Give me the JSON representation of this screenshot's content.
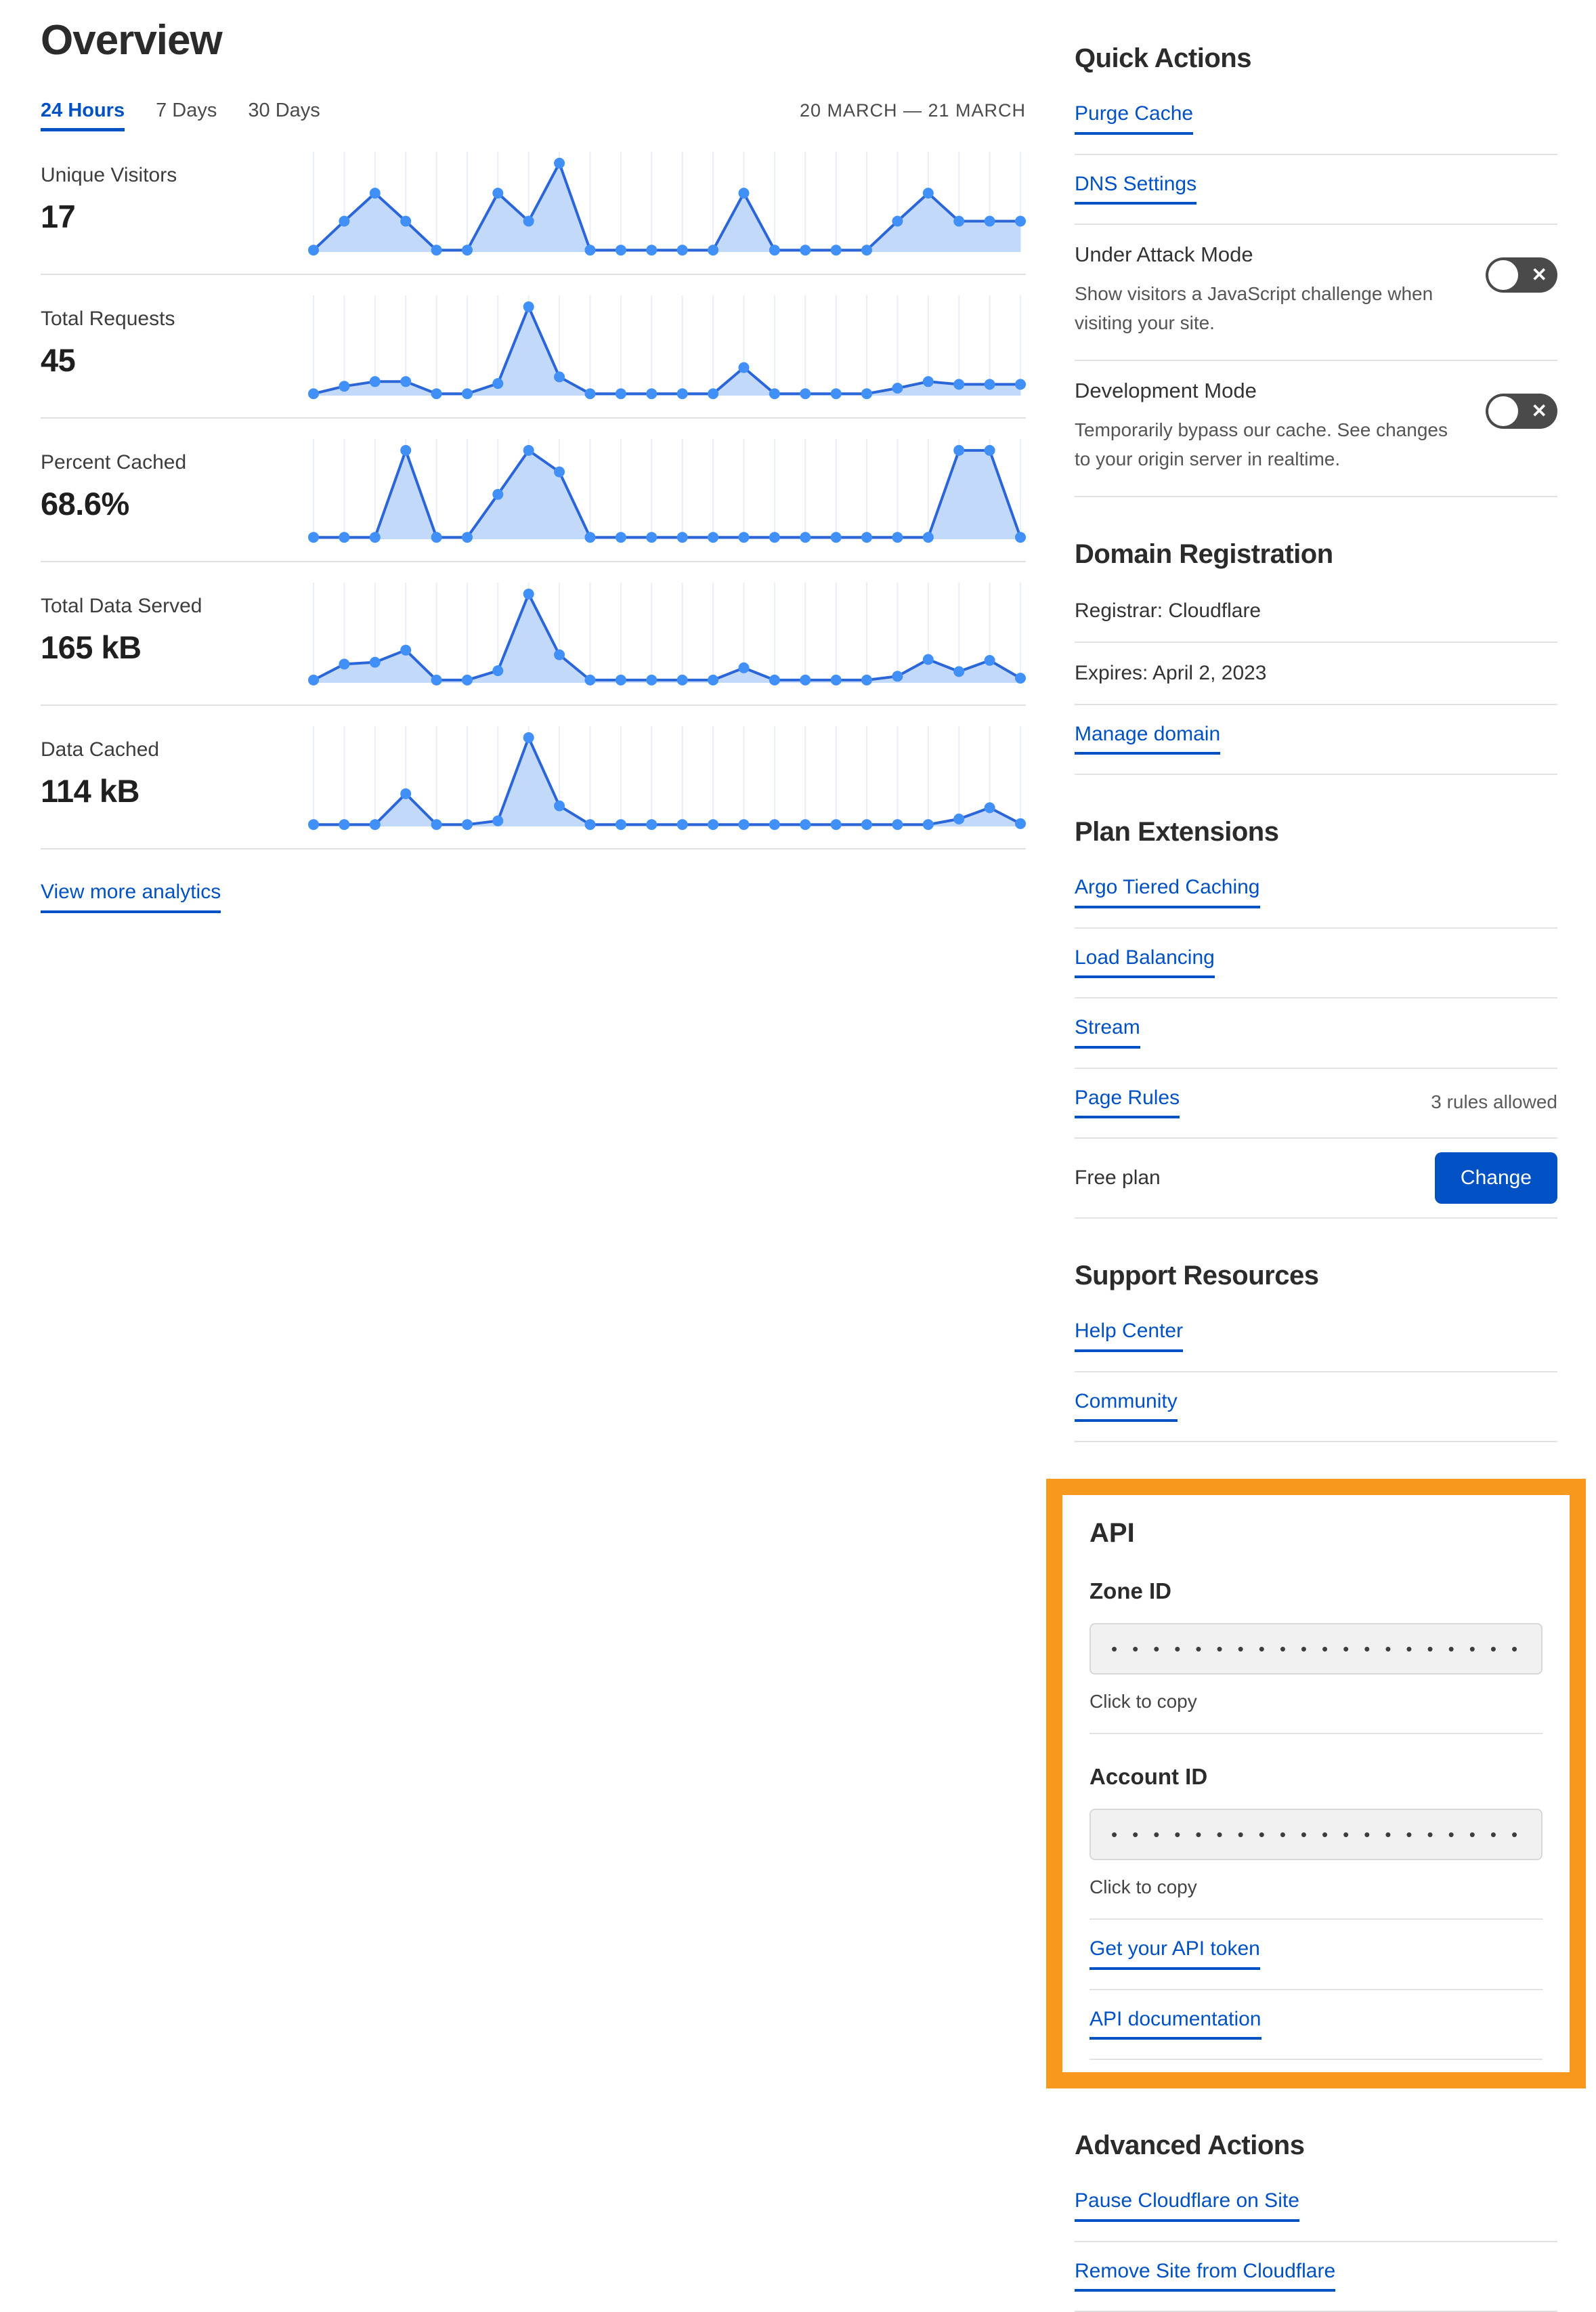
{
  "header": {
    "title": "Overview",
    "date_range": "20 MARCH — 21 MARCH"
  },
  "tabs": [
    {
      "label": "24 Hours",
      "active": true
    },
    {
      "label": "7 Days",
      "active": false
    },
    {
      "label": "30 Days",
      "active": false
    }
  ],
  "view_more_label": "View more analytics",
  "chart_data": {
    "type": "line",
    "subtype": "area-sparkline",
    "x_range": "24 hourly samples, 20 MARCH — 21 MARCH",
    "legend": "none",
    "grid": "vertical gridline at each sample point",
    "ylim": [
      0,
      100
    ],
    "note": "values are relative heights (0-100) estimated from sparkline pixels",
    "series": [
      {
        "name": "Unique Visitors",
        "display_value": "17",
        "values": [
          2,
          33,
          63,
          33,
          2,
          2,
          63,
          33,
          95,
          2,
          2,
          2,
          2,
          2,
          63,
          2,
          2,
          2,
          2,
          33,
          63,
          33,
          33,
          33
        ]
      },
      {
        "name": "Total Requests",
        "display_value": "45",
        "values": [
          2,
          10,
          15,
          15,
          2,
          2,
          13,
          95,
          20,
          2,
          2,
          2,
          2,
          2,
          30,
          2,
          2,
          2,
          2,
          8,
          15,
          12,
          12,
          12
        ]
      },
      {
        "name": "Percent Cached",
        "display_value": "68.6%",
        "values": [
          2,
          2,
          2,
          95,
          2,
          2,
          48,
          95,
          72,
          2,
          2,
          2,
          2,
          2,
          2,
          2,
          2,
          2,
          2,
          2,
          2,
          95,
          95,
          2
        ]
      },
      {
        "name": "Total Data Served",
        "display_value": "165 kB",
        "values": [
          3,
          20,
          22,
          35,
          3,
          3,
          13,
          95,
          30,
          3,
          3,
          3,
          3,
          3,
          16,
          3,
          3,
          3,
          3,
          7,
          25,
          12,
          24,
          5
        ]
      },
      {
        "name": "Data Cached",
        "display_value": "114 kB",
        "values": [
          2,
          2,
          2,
          35,
          2,
          2,
          6,
          95,
          22,
          2,
          2,
          2,
          2,
          2,
          2,
          2,
          2,
          2,
          2,
          2,
          2,
          8,
          20,
          3
        ]
      }
    ]
  },
  "quick_actions": {
    "heading": "Quick Actions",
    "links": [
      "Purge Cache",
      "DNS Settings"
    ],
    "toggles": [
      {
        "label": "Under Attack Mode",
        "desc": "Show visitors a JavaScript challenge when visiting your site.",
        "state": "off"
      },
      {
        "label": "Development Mode",
        "desc": "Temporarily bypass our cache. See changes to your origin server in realtime.",
        "state": "off"
      }
    ]
  },
  "domain_registration": {
    "heading": "Domain Registration",
    "registrar": "Registrar: Cloudflare",
    "expires": "Expires: April 2, 2023",
    "manage_label": "Manage domain"
  },
  "plan_extensions": {
    "heading": "Plan Extensions",
    "links": [
      "Argo Tiered Caching",
      "Load Balancing",
      "Stream"
    ],
    "page_rules": {
      "label": "Page Rules",
      "note": "3 rules allowed"
    },
    "plan": {
      "label": "Free plan",
      "button_label": "Change"
    }
  },
  "support": {
    "heading": "Support Resources",
    "links": [
      "Help Center",
      "Community"
    ]
  },
  "api": {
    "heading": "API",
    "zone": {
      "label": "Zone ID",
      "masked_value": "•••••••••••••••••••••••••••",
      "hint": "Click to copy"
    },
    "account": {
      "label": "Account ID",
      "masked_value": "•••••••••••••••••••••••••••",
      "hint": "Click to copy"
    },
    "links": [
      "Get your API token",
      "API documentation"
    ]
  },
  "advanced": {
    "heading": "Advanced Actions",
    "links": [
      "Pause Cloudflare on Site",
      "Remove Site from Cloudflare"
    ]
  },
  "colors": {
    "accent_blue": "#0051c3",
    "chart_line": "#2b66d9",
    "chart_dot": "#4090f7",
    "chart_fill": "#c3d9f9",
    "chart_grid": "#e9eefb",
    "highlight_orange": "#f8981d",
    "toggle_off_bg": "#4a4a4a"
  }
}
